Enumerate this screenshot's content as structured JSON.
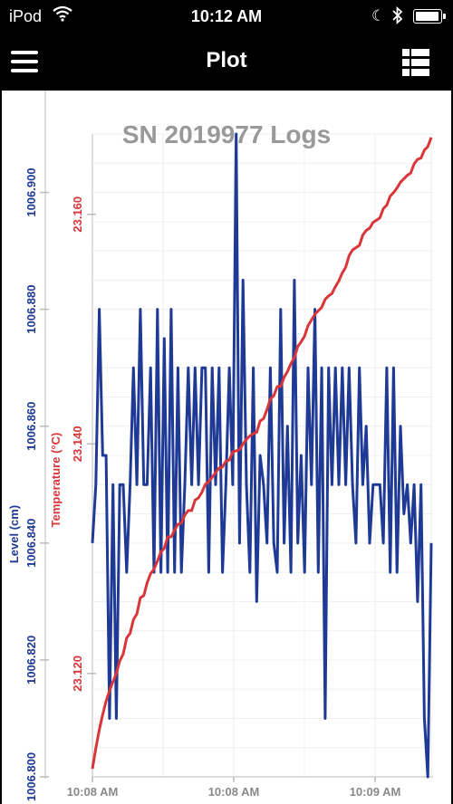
{
  "status_bar": {
    "carrier": "iPod",
    "time": "10:12 AM",
    "battery_level": 0.95,
    "icons": [
      "wifi-icon",
      "moon-icon",
      "bluetooth-icon",
      "battery-icon"
    ]
  },
  "nav_bar": {
    "title": "Plot",
    "left_icon": "menu-icon",
    "right_icon": "list-icon"
  },
  "chart_data": {
    "type": "line",
    "title": "SN 2019977 Logs",
    "xlabel": "",
    "x_tick_labels": [
      "10:08 AM",
      "10:08 AM",
      "10:09 AM"
    ],
    "left_axis": {
      "label": "Level (cm)",
      "color": "#1f3a94",
      "range": [
        1006.8,
        1006.91
      ],
      "ticks": [
        1006.8,
        1006.82,
        1006.84,
        1006.86,
        1006.88,
        1006.9
      ]
    },
    "right_axis": {
      "label": "Temperature (°C)",
      "color": "#d9363a",
      "range": [
        23.111,
        23.167
      ],
      "ticks": [
        23.12,
        23.14,
        23.16
      ]
    },
    "series": [
      {
        "name": "Level (cm)",
        "color": "#1f3a94",
        "axis": "left",
        "values": [
          1006.84,
          1006.85,
          1006.88,
          1006.855,
          1006.855,
          1006.81,
          1006.85,
          1006.81,
          1006.85,
          1006.85,
          1006.835,
          1006.85,
          1006.87,
          1006.85,
          1006.88,
          1006.85,
          1006.85,
          1006.87,
          1006.835,
          1006.88,
          1006.835,
          1006.875,
          1006.835,
          1006.88,
          1006.835,
          1006.87,
          1006.835,
          1006.85,
          1006.87,
          1006.85,
          1006.87,
          1006.85,
          1006.87,
          1006.87,
          1006.835,
          1006.87,
          1006.85,
          1006.87,
          1006.835,
          1006.85,
          1006.87,
          1006.85,
          1006.91,
          1006.84,
          1006.885,
          1006.85,
          1006.835,
          1006.87,
          1006.83,
          1006.855,
          1006.85,
          1006.84,
          1006.87,
          1006.84,
          1006.835,
          1006.88,
          1006.84,
          1006.86,
          1006.835,
          1006.885,
          1006.84,
          1006.855,
          1006.835,
          1006.87,
          1006.85,
          1006.88,
          1006.835,
          1006.87,
          1006.81,
          1006.87,
          1006.85,
          1006.87,
          1006.85,
          1006.87,
          1006.85,
          1006.87,
          1006.85,
          1006.84,
          1006.87,
          1006.85,
          1006.86,
          1006.84,
          1006.85,
          1006.85,
          1006.85,
          1006.84,
          1006.87,
          1006.835,
          1006.87,
          1006.835,
          1006.86,
          1006.845,
          1006.85,
          1006.84,
          1006.85,
          1006.83,
          1006.85,
          1006.81,
          1006.8,
          1006.84
        ]
      },
      {
        "name": "Temperature (°C)",
        "color": "#d9363a",
        "axis": "right",
        "values": [
          23.1117,
          23.1135,
          23.1151,
          23.1164,
          23.1176,
          23.1185,
          23.1193,
          23.12,
          23.1211,
          23.1217,
          23.1231,
          23.1235,
          23.1247,
          23.1252,
          23.1266,
          23.1268,
          23.1279,
          23.1287,
          23.1291,
          23.1298,
          23.1306,
          23.1309,
          23.1319,
          23.1319,
          23.1325,
          23.133,
          23.1331,
          23.1338,
          23.1342,
          23.1342,
          23.1351,
          23.1353,
          23.1358,
          23.1365,
          23.1367,
          23.1371,
          23.1375,
          23.1379,
          23.138,
          23.1385,
          23.1386,
          23.1393,
          23.1394,
          23.1395,
          23.14,
          23.1404,
          23.1407,
          23.1409,
          23.141,
          23.142,
          23.1422,
          23.143,
          23.1439,
          23.1442,
          23.145,
          23.145,
          23.1458,
          23.1463,
          23.147,
          23.1475,
          23.1485,
          23.1489,
          23.1494,
          23.1503,
          23.1508,
          23.1513,
          23.1516,
          23.1519,
          23.1526,
          23.1529,
          23.1531,
          23.1537,
          23.1542,
          23.1549,
          23.1554,
          23.1564,
          23.1569,
          23.1571,
          23.1573,
          23.1582,
          23.1586,
          23.1588,
          23.1593,
          23.1595,
          23.1597,
          23.1605,
          23.1608,
          23.1616,
          23.1619,
          23.1623,
          23.1628,
          23.1631,
          23.1634,
          23.1636,
          23.1644,
          23.1648,
          23.1649,
          23.1656,
          23.1659,
          23.1667
        ]
      }
    ],
    "legend": "none",
    "grid": true
  }
}
